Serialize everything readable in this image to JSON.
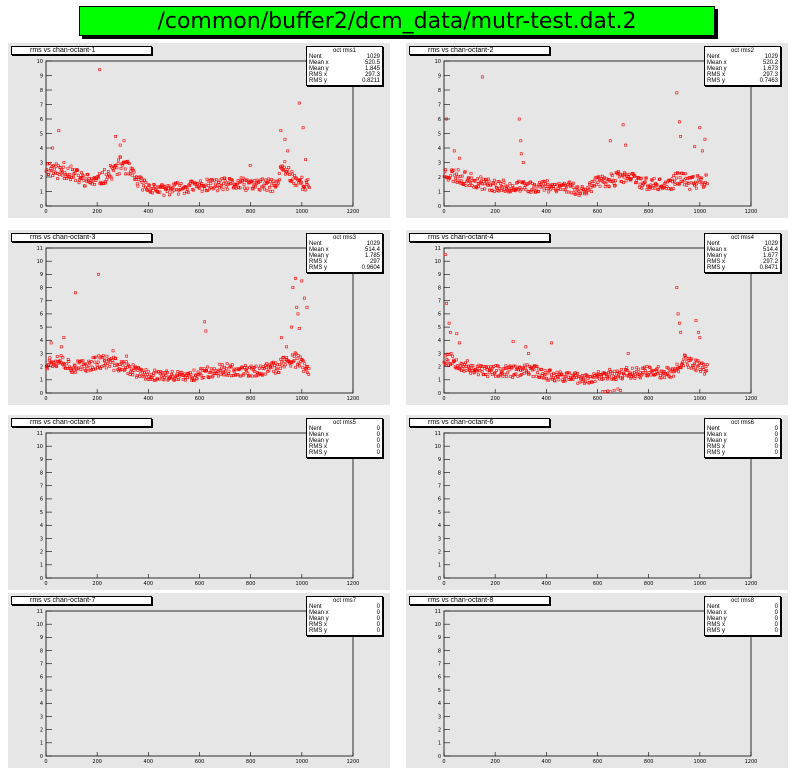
{
  "title": "/common/buffer2/dcm_data/mutr-test.dat.2",
  "colors": {
    "title_bg": "#00ff00",
    "pad_bg": "#e6e6e6",
    "marker": "#ff0000"
  },
  "chart_data": [
    {
      "type": "scatter",
      "title": "rms vs chan-octant-1",
      "xlim": [
        0,
        1200
      ],
      "ylim": [
        0,
        10
      ],
      "xticks": [
        0,
        200,
        400,
        600,
        800,
        1000,
        1200
      ],
      "yticks": [
        0,
        1,
        2,
        3,
        4,
        5,
        6,
        7,
        8,
        9,
        10
      ],
      "stats_title": "oct rms1",
      "stats": [
        [
          "Nent",
          "1029"
        ],
        [
          "Mean x",
          "520.5"
        ],
        [
          "Mean y",
          "1.845"
        ],
        [
          "RMS x",
          "297.3"
        ],
        [
          "RMS y",
          "0.8211"
        ]
      ],
      "profile": [
        [
          0,
          2.7
        ],
        [
          40,
          2.4
        ],
        [
          80,
          2.4
        ],
        [
          150,
          1.8
        ],
        [
          200,
          1.7
        ],
        [
          260,
          2.4
        ],
        [
          300,
          3.0
        ],
        [
          350,
          1.8
        ],
        [
          400,
          1.3
        ],
        [
          450,
          1.1
        ],
        [
          500,
          1.2
        ],
        [
          600,
          1.4
        ],
        [
          700,
          1.5
        ],
        [
          800,
          1.5
        ],
        [
          900,
          1.4
        ],
        [
          925,
          2.8
        ],
        [
          960,
          2.0
        ],
        [
          1000,
          1.6
        ],
        [
          1029,
          1.4
        ]
      ],
      "spikes": [
        [
          26,
          4.0
        ],
        [
          50,
          5.2
        ],
        [
          70,
          3.0
        ],
        [
          210,
          9.4
        ],
        [
          272,
          4.8
        ],
        [
          290,
          4.2
        ],
        [
          305,
          4.5
        ],
        [
          798,
          2.8
        ],
        [
          918,
          5.2
        ],
        [
          934,
          4.6
        ],
        [
          945,
          3.8
        ],
        [
          990,
          7.1
        ],
        [
          1005,
          5.4
        ],
        [
          1015,
          3.2
        ]
      ],
      "seed": 11
    },
    {
      "type": "scatter",
      "title": "rms vs chan-octant-2",
      "xlim": [
        0,
        1200
      ],
      "ylim": [
        0,
        10
      ],
      "xticks": [
        0,
        200,
        400,
        600,
        800,
        1000,
        1200
      ],
      "yticks": [
        0,
        1,
        2,
        3,
        4,
        5,
        6,
        7,
        8,
        9,
        10
      ],
      "stats_title": "oct rms2",
      "stats": [
        [
          "Nent",
          "1029"
        ],
        [
          "Mean x",
          "520.2"
        ],
        [
          "Mean y",
          "1.673"
        ],
        [
          "RMS x",
          "297.3"
        ],
        [
          "RMS y",
          "0.7463"
        ]
      ],
      "profile": [
        [
          0,
          2.3
        ],
        [
          60,
          2.0
        ],
        [
          120,
          1.7
        ],
        [
          200,
          1.4
        ],
        [
          300,
          1.3
        ],
        [
          400,
          1.4
        ],
        [
          500,
          1.3
        ],
        [
          530,
          1.0
        ],
        [
          600,
          1.6
        ],
        [
          700,
          2.0
        ],
        [
          750,
          1.8
        ],
        [
          800,
          1.5
        ],
        [
          880,
          1.4
        ],
        [
          920,
          2.0
        ],
        [
          960,
          1.6
        ],
        [
          1029,
          1.8
        ]
      ],
      "spikes": [
        [
          10,
          6.0
        ],
        [
          40,
          3.8
        ],
        [
          60,
          3.3
        ],
        [
          150,
          8.9
        ],
        [
          294,
          6.0
        ],
        [
          300,
          4.5
        ],
        [
          302,
          3.6
        ],
        [
          310,
          3.0
        ],
        [
          650,
          4.5
        ],
        [
          700,
          5.6
        ],
        [
          710,
          4.2
        ],
        [
          910,
          7.8
        ],
        [
          920,
          5.8
        ],
        [
          925,
          4.8
        ],
        [
          980,
          4.1
        ],
        [
          1000,
          5.4
        ],
        [
          1010,
          3.8
        ],
        [
          1020,
          4.6
        ]
      ],
      "seed": 23
    },
    {
      "type": "scatter",
      "title": "rms vs chan-octant-3",
      "xlim": [
        0,
        1200
      ],
      "ylim": [
        0,
        11
      ],
      "xticks": [
        0,
        200,
        400,
        600,
        800,
        1000,
        1200
      ],
      "yticks": [
        0,
        1,
        2,
        3,
        4,
        5,
        6,
        7,
        8,
        9,
        10,
        11
      ],
      "stats_title": "oct rms3",
      "stats": [
        [
          "Nent",
          "1029"
        ],
        [
          "Mean x",
          "514.4"
        ],
        [
          "Mean y",
          "1.785"
        ],
        [
          "RMS x",
          "297"
        ],
        [
          "RMS y",
          "0.9604"
        ]
      ],
      "profile": [
        [
          0,
          2.3
        ],
        [
          50,
          2.6
        ],
        [
          100,
          2.0
        ],
        [
          150,
          2.0
        ],
        [
          200,
          2.4
        ],
        [
          250,
          2.3
        ],
        [
          300,
          2.0
        ],
        [
          380,
          1.4
        ],
        [
          450,
          1.3
        ],
        [
          550,
          1.2
        ],
        [
          600,
          1.5
        ],
        [
          700,
          1.8
        ],
        [
          800,
          1.6
        ],
        [
          900,
          1.9
        ],
        [
          940,
          2.5
        ],
        [
          980,
          2.5
        ],
        [
          1029,
          1.6
        ]
      ],
      "spikes": [
        [
          20,
          3.8
        ],
        [
          60,
          3.5
        ],
        [
          70,
          4.2
        ],
        [
          115,
          7.6
        ],
        [
          205,
          9.0
        ],
        [
          262,
          3.2
        ],
        [
          315,
          2.8
        ],
        [
          620,
          5.4
        ],
        [
          625,
          4.7
        ],
        [
          920,
          4.2
        ],
        [
          940,
          3.5
        ],
        [
          960,
          5.0
        ],
        [
          965,
          8.0
        ],
        [
          975,
          8.7
        ],
        [
          980,
          6.5
        ],
        [
          985,
          6.0
        ],
        [
          990,
          4.9
        ],
        [
          1000,
          8.5
        ],
        [
          1010,
          7.2
        ],
        [
          1020,
          6.5
        ]
      ],
      "seed": 37
    },
    {
      "type": "scatter",
      "title": "rms vs chan-octant-4",
      "xlim": [
        0,
        1200
      ],
      "ylim": [
        0,
        11
      ],
      "xticks": [
        0,
        200,
        400,
        600,
        800,
        1000,
        1200
      ],
      "yticks": [
        0,
        1,
        2,
        3,
        4,
        5,
        6,
        7,
        8,
        9,
        10,
        11
      ],
      "stats_title": "oct rms4",
      "stats": [
        [
          "Nent",
          "1029"
        ],
        [
          "Mean x",
          "514.4"
        ],
        [
          "Mean y",
          "1.677"
        ],
        [
          "RMS x",
          "297.2"
        ],
        [
          "RMS y",
          "0.8471"
        ]
      ],
      "profile": [
        [
          0,
          2.6
        ],
        [
          40,
          2.5
        ],
        [
          80,
          2.0
        ],
        [
          150,
          1.7
        ],
        [
          250,
          1.6
        ],
        [
          350,
          1.7
        ],
        [
          400,
          1.4
        ],
        [
          500,
          1.2
        ],
        [
          550,
          1.0
        ],
        [
          600,
          1.3
        ],
        [
          700,
          1.5
        ],
        [
          800,
          1.6
        ],
        [
          900,
          1.5
        ],
        [
          930,
          2.4
        ],
        [
          980,
          2.2
        ],
        [
          1029,
          1.7
        ]
      ],
      "spikes": [
        [
          5,
          10.5
        ],
        [
          10,
          6.8
        ],
        [
          20,
          5.3
        ],
        [
          25,
          4.6
        ],
        [
          50,
          4.5
        ],
        [
          60,
          3.8
        ],
        [
          270,
          3.9
        ],
        [
          320,
          3.5
        ],
        [
          330,
          3.0
        ],
        [
          420,
          3.8
        ],
        [
          720,
          3.0
        ],
        [
          910,
          8.0
        ],
        [
          915,
          6.0
        ],
        [
          920,
          5.3
        ],
        [
          925,
          4.6
        ],
        [
          985,
          5.5
        ],
        [
          995,
          4.6
        ],
        [
          1000,
          4.2
        ]
      ],
      "lowpoints": [
        [
          620,
          0.1
        ],
        [
          630,
          0.1
        ],
        [
          640,
          0.15
        ],
        [
          650,
          0.1
        ],
        [
          665,
          0.2
        ],
        [
          680,
          0.3
        ],
        [
          690,
          0.2
        ]
      ],
      "seed": 53
    },
    {
      "type": "scatter",
      "title": "rms vs chan-octant-5",
      "xlim": [
        0,
        1200
      ],
      "ylim": [
        0,
        11
      ],
      "xticks": [
        0,
        200,
        400,
        600,
        800,
        1000,
        1200
      ],
      "yticks": [
        0,
        1,
        2,
        3,
        4,
        5,
        6,
        7,
        8,
        9,
        10,
        11
      ],
      "stats_title": "oct rms5",
      "stats": [
        [
          "Nent",
          "0"
        ],
        [
          "Mean x",
          "0"
        ],
        [
          "Mean y",
          "0"
        ],
        [
          "RMS x",
          "0"
        ],
        [
          "RMS y",
          "0"
        ]
      ],
      "profile": [],
      "spikes": [],
      "seed": 0
    },
    {
      "type": "scatter",
      "title": "rms vs chan-octant-6",
      "xlim": [
        0,
        1200
      ],
      "ylim": [
        0,
        11
      ],
      "xticks": [
        0,
        200,
        400,
        600,
        800,
        1000,
        1200
      ],
      "yticks": [
        0,
        1,
        2,
        3,
        4,
        5,
        6,
        7,
        8,
        9,
        10,
        11
      ],
      "stats_title": "oct rms6",
      "stats": [
        [
          "Nent",
          "0"
        ],
        [
          "Mean x",
          "0"
        ],
        [
          "Mean y",
          "0"
        ],
        [
          "RMS x",
          "0"
        ],
        [
          "RMS y",
          "0"
        ]
      ],
      "profile": [],
      "spikes": [],
      "seed": 0
    },
    {
      "type": "scatter",
      "title": "rms vs chan-octant-7",
      "xlim": [
        0,
        1200
      ],
      "ylim": [
        0,
        11
      ],
      "xticks": [
        0,
        200,
        400,
        600,
        800,
        1000,
        1200
      ],
      "yticks": [
        0,
        1,
        2,
        3,
        4,
        5,
        6,
        7,
        8,
        9,
        10,
        11
      ],
      "stats_title": "oct rms7",
      "stats": [
        [
          "Nent",
          "0"
        ],
        [
          "Mean x",
          "0"
        ],
        [
          "Mean y",
          "0"
        ],
        [
          "RMS x",
          "0"
        ],
        [
          "RMS y",
          "0"
        ]
      ],
      "profile": [],
      "spikes": [],
      "seed": 0
    },
    {
      "type": "scatter",
      "title": "rms vs chan-octant-8",
      "xlim": [
        0,
        1200
      ],
      "ylim": [
        0,
        11
      ],
      "xticks": [
        0,
        200,
        400,
        600,
        800,
        1000,
        1200
      ],
      "yticks": [
        0,
        1,
        2,
        3,
        4,
        5,
        6,
        7,
        8,
        9,
        10,
        11
      ],
      "stats_title": "oct rms8",
      "stats": [
        [
          "Nent",
          "0"
        ],
        [
          "Mean x",
          "0"
        ],
        [
          "Mean y",
          "0"
        ],
        [
          "RMS x",
          "0"
        ],
        [
          "RMS y",
          "0"
        ]
      ],
      "profile": [],
      "spikes": [],
      "seed": 0
    }
  ]
}
